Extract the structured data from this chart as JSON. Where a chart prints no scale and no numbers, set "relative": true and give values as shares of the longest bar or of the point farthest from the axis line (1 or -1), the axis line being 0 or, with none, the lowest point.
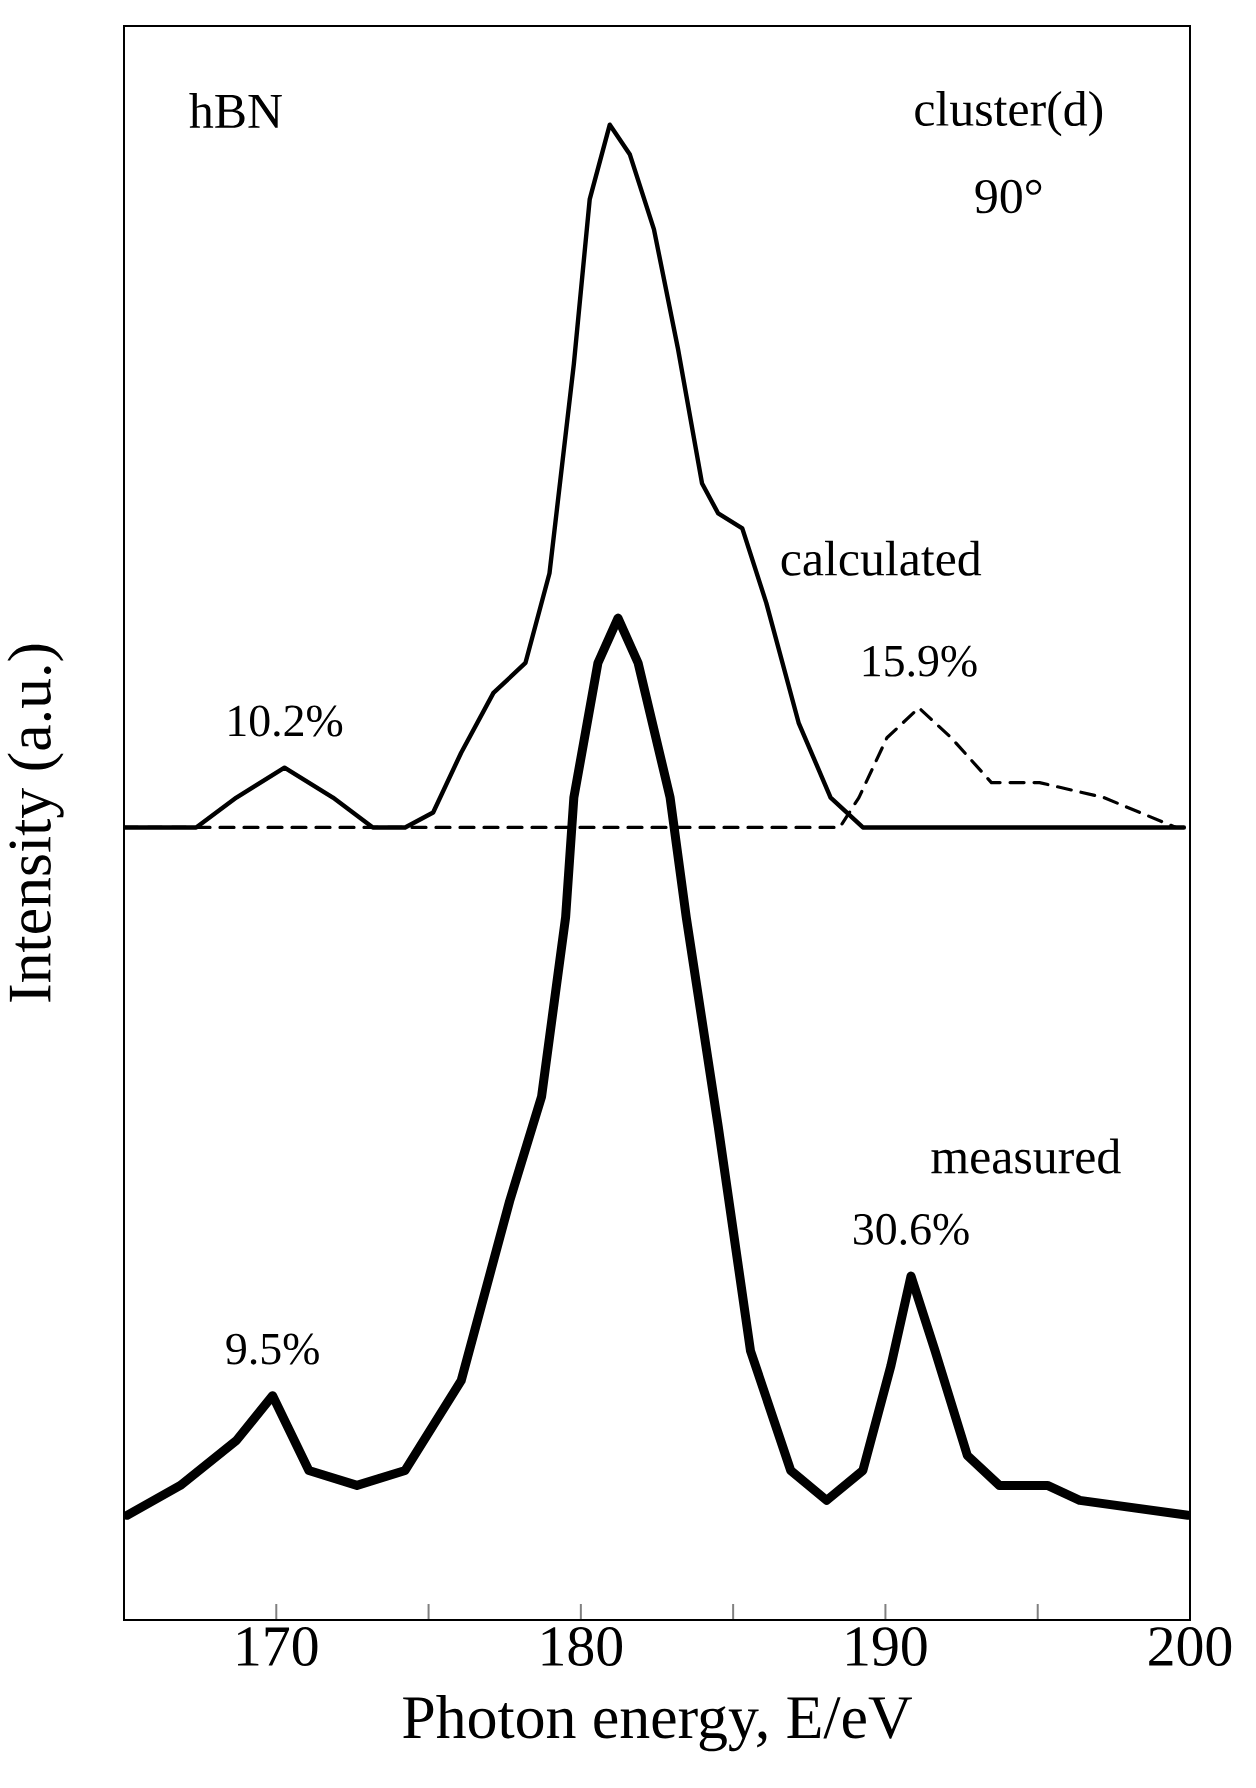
{
  "chart_data": {
    "type": "line",
    "relative": true,
    "xlabel": "Photon energy, E/eV",
    "ylabel": "Intensity (a.u.)",
    "xlim": [
      165,
      200
    ],
    "xticks": [
      170,
      {
        "value": 175,
        "label": null
      },
      180,
      {
        "value": 185,
        "label": null
      },
      190,
      {
        "value": 195,
        "label": null
      },
      200
    ],
    "tick_labels": "x",
    "series": [
      {
        "name": "calculated",
        "color": "#000000",
        "line_style": "solid",
        "x": [
          165.0,
          167.37,
          168.69,
          170.27,
          171.86,
          173.17,
          174.23,
          175.15,
          176.07,
          177.13,
          178.18,
          178.97,
          179.77,
          180.29,
          180.95,
          181.61,
          182.4,
          183.19,
          183.98,
          184.51,
          185.3,
          186.09,
          187.15,
          188.2,
          189.26,
          191.1,
          199.8
        ],
        "values": [
          0.53,
          0.53,
          0.55,
          0.57,
          0.55,
          0.53,
          0.53,
          0.54,
          0.58,
          0.62,
          0.64,
          0.7,
          0.84,
          0.95,
          1.0,
          0.98,
          0.93,
          0.85,
          0.76,
          0.74,
          0.73,
          0.68,
          0.6,
          0.55,
          0.53,
          0.53,
          0.53
        ]
      },
      {
        "color": "#000000",
        "line_style": "dashed",
        "x": [
          165.0,
          188.5,
          189.13,
          190.05,
          191.1,
          192.16,
          193.48,
          195.06,
          197.17,
          199.54
        ],
        "values": [
          0.53,
          0.53,
          0.55,
          0.59,
          0.61,
          0.59,
          0.56,
          0.56,
          0.55,
          0.53
        ]
      },
      {
        "name": "measured",
        "color": "#000000",
        "line_style": "solid",
        "x": [
          165.1,
          166.85,
          168.69,
          169.88,
          171.07,
          172.65,
          174.23,
          176.07,
          177.66,
          178.71,
          179.5,
          179.77,
          180.56,
          181.22,
          181.88,
          182.93,
          183.46,
          184.51,
          185.57,
          186.89,
          188.07,
          189.26,
          190.18,
          190.84,
          191.63,
          192.69,
          193.74,
          195.32,
          196.38,
          199.93
        ],
        "values": [
          0.07,
          0.09,
          0.12,
          0.15,
          0.1,
          0.09,
          0.1,
          0.16,
          0.28,
          0.35,
          0.47,
          0.55,
          0.64,
          0.67,
          0.64,
          0.55,
          0.47,
          0.33,
          0.18,
          0.1,
          0.08,
          0.1,
          0.17,
          0.23,
          0.18,
          0.11,
          0.09,
          0.09,
          0.08,
          0.07
        ]
      }
    ],
    "annotations": [
      "hBN",
      "cluster(d)",
      "90°",
      {
        "text": "10.2%",
        "x": 170.27,
        "y": 0.57
      },
      {
        "text": "15.9%",
        "x": 191.1,
        "y": 0.61
      },
      {
        "text": "9.5%",
        "x": 169.88,
        "y": 0.15
      },
      {
        "text": "30.6%",
        "x": 190.84,
        "y": 0.23
      }
    ]
  }
}
